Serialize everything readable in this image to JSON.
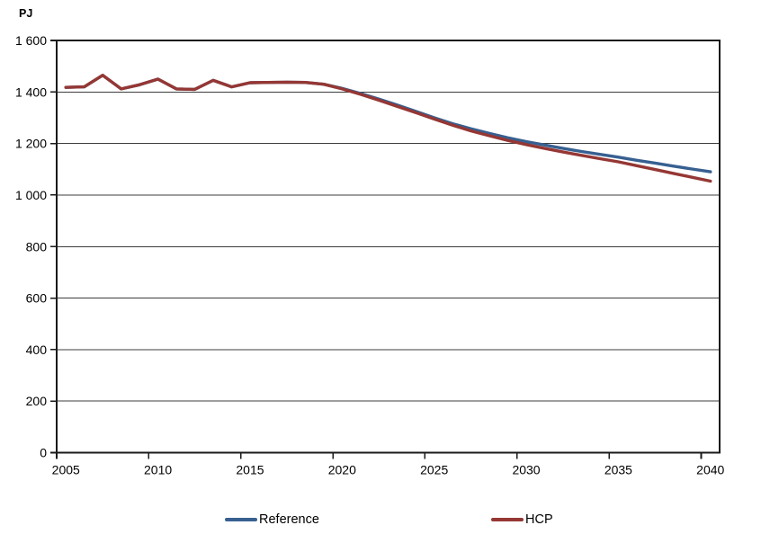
{
  "chart_data": {
    "type": "line",
    "title": "",
    "xlabel": "",
    "ylabel": "PJ",
    "ylim": [
      0,
      1600
    ],
    "grid": "horizontal",
    "legend_position": "bottom",
    "x": [
      2005,
      2006,
      2007,
      2008,
      2009,
      2010,
      2011,
      2012,
      2013,
      2014,
      2015,
      2016,
      2017,
      2018,
      2019,
      2020,
      2021,
      2022,
      2023,
      2024,
      2025,
      2026,
      2027,
      2028,
      2029,
      2030,
      2031,
      2032,
      2033,
      2034,
      2035,
      2036,
      2037,
      2038,
      2039,
      2040
    ],
    "x_tick_labels": [
      "2005",
      "2010",
      "2015",
      "2020",
      "2025",
      "2030",
      "2035",
      "2040"
    ],
    "y_ticks": {
      "values": [
        0,
        200,
        400,
        600,
        800,
        1000,
        1200,
        1400,
        1600
      ],
      "labels": [
        "0",
        "200",
        "400",
        "600",
        "800",
        "1 000",
        "1 200",
        "1 400",
        "1 600"
      ]
    },
    "series": [
      {
        "name": "Reference",
        "color": "#376091",
        "values": [
          1418,
          1420,
          1465,
          1412,
          1428,
          1450,
          1412,
          1410,
          1445,
          1420,
          1436,
          1437,
          1438,
          1437,
          1430,
          1414,
          1394,
          1372,
          1349,
          1325,
          1300,
          1277,
          1257,
          1239,
          1222,
          1207,
          1194,
          1181,
          1169,
          1158,
          1147,
          1135,
          1124,
          1112,
          1101,
          1090
        ]
      },
      {
        "name": "HCP",
        "color": "#953734",
        "values": [
          1418,
          1420,
          1465,
          1412,
          1428,
          1450,
          1412,
          1410,
          1445,
          1420,
          1436,
          1437,
          1438,
          1437,
          1430,
          1412,
          1391,
          1368,
          1344,
          1320,
          1295,
          1271,
          1249,
          1230,
          1212,
          1196,
          1181,
          1167,
          1154,
          1141,
          1129,
          1114,
          1099,
          1084,
          1069,
          1054
        ]
      }
    ]
  },
  "axes_style": {
    "border_color": "#1a1a1a",
    "gridline_color": "#3d3d3d",
    "tick_color": "#1a1a1a"
  }
}
